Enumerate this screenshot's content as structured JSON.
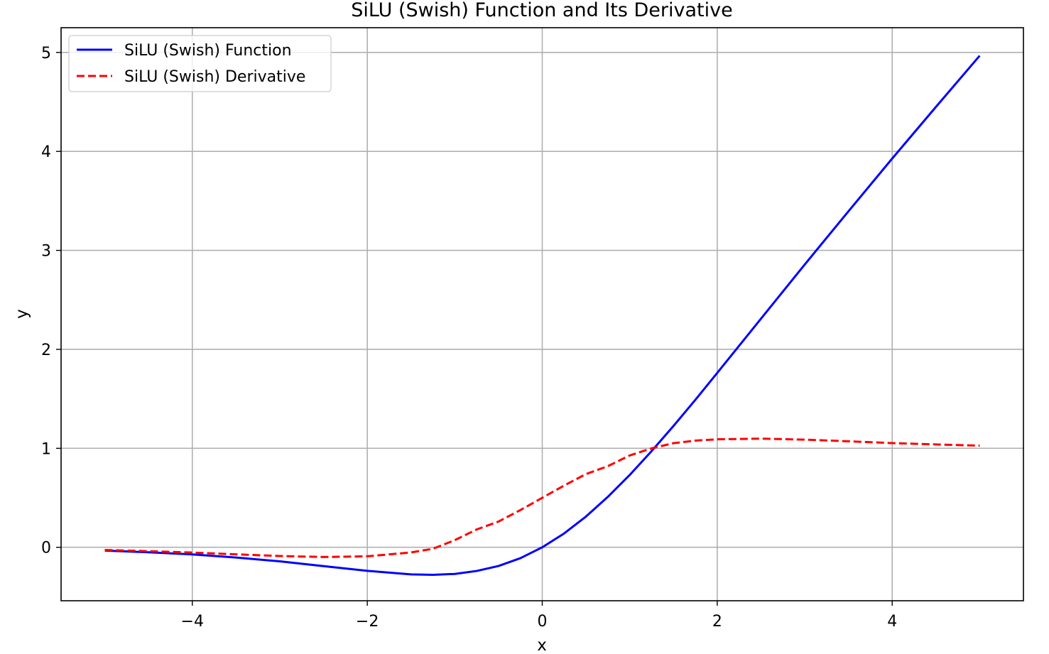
{
  "chart_data": {
    "type": "line",
    "title": "SiLU (Swish) Function and Its Derivative",
    "xlabel": "x",
    "ylabel": "y",
    "xlim": [
      -5.5,
      5.5
    ],
    "ylim": [
      -0.54,
      5.25
    ],
    "x_ticks": [
      -4,
      -2,
      0,
      2,
      4
    ],
    "x_tick_labels": [
      "−4",
      "−2",
      "0",
      "2",
      "4"
    ],
    "y_ticks": [
      0,
      1,
      2,
      3,
      4,
      5
    ],
    "y_tick_labels": [
      "0",
      "1",
      "2",
      "3",
      "4",
      "5"
    ],
    "grid": true,
    "legend_position": "top-left",
    "x": [
      -5,
      -4.5,
      -4,
      -3.5,
      -3,
      -2.5,
      -2,
      -1.5,
      -1.25,
      -1,
      -0.75,
      -0.5,
      -0.25,
      0,
      0.25,
      0.5,
      0.75,
      1,
      1.25,
      1.5,
      1.75,
      2,
      2.5,
      3,
      3.5,
      4,
      4.5,
      5
    ],
    "series": [
      {
        "name": "SiLU (Swish) Function",
        "color": "#0000ff",
        "linestyle": "solid",
        "values": [
          -0.033,
          -0.05,
          -0.072,
          -0.103,
          -0.142,
          -0.19,
          -0.238,
          -0.274,
          -0.278,
          -0.269,
          -0.239,
          -0.189,
          -0.11,
          0,
          0.14,
          0.311,
          0.51,
          0.731,
          0.972,
          1.226,
          1.49,
          1.762,
          2.31,
          2.857,
          3.395,
          3.928,
          4.45,
          4.967
        ]
      },
      {
        "name": "SiLU (Swish) Derivative",
        "color": "#ff0000",
        "linestyle": "dashed",
        "values": [
          -0.027,
          -0.039,
          -0.053,
          -0.071,
          -0.088,
          -0.098,
          -0.091,
          -0.052,
          -0.015,
          0.072,
          0.18,
          0.26,
          0.376,
          0.5,
          0.624,
          0.74,
          0.82,
          0.928,
          1.0,
          1.052,
          1.078,
          1.091,
          1.098,
          1.088,
          1.071,
          1.053,
          1.039,
          1.027
        ]
      }
    ]
  }
}
